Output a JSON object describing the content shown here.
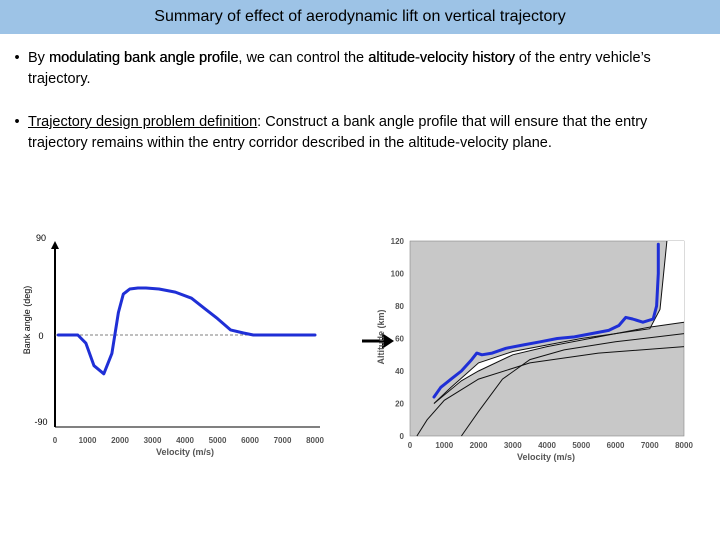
{
  "slide": {
    "title": "Summary of effect of aerodynamic lift on vertical trajectory",
    "bullet1": {
      "pre": "By ",
      "bold1": "modulating bank angle profile",
      "mid": ", we can control the ",
      "bold2": "altitude-velocity history",
      "post": " of the entry vehicle’s trajectory."
    },
    "bullet2": {
      "underlined": "Trajectory design problem definition",
      "post": ": Construct a bank angle profile that will ensure that the entry trajectory remains within the entry corridor described in the altitude-velocity plane."
    }
  },
  "chart_data": [
    {
      "type": "line",
      "xlabel": "Velocity (m/s)",
      "ylabel": "Bank angle (deg)",
      "x_ticks": [
        0,
        1000,
        2000,
        3000,
        4000,
        5000,
        6000,
        7000,
        8000
      ],
      "y_tick_labels": [
        "90",
        "0",
        "-90"
      ],
      "xlim": [
        0,
        8000
      ],
      "ylim": [
        -90,
        90
      ],
      "reference_line_y": 0,
      "series": [
        {
          "color": "#1f2fd6",
          "x": [
            100,
            700,
            950,
            1200,
            1500,
            1750,
            1950,
            2100,
            2300,
            2550,
            2800,
            3200,
            3700,
            4200,
            4600,
            5000,
            5400,
            5800,
            6100,
            6400,
            7000,
            7500,
            8000
          ],
          "y": [
            0,
            0,
            -8,
            -30,
            -38,
            -18,
            22,
            40,
            45,
            46,
            46,
            45,
            42,
            36,
            26,
            16,
            5,
            2,
            0,
            0,
            0,
            0,
            0
          ]
        }
      ]
    },
    {
      "type": "line",
      "xlabel": "Velocity (m/s)",
      "ylabel": "Altitude (km)",
      "x_ticks": [
        0,
        1000,
        2000,
        3000,
        4000,
        5000,
        6000,
        7000,
        8000
      ],
      "y_ticks": [
        0,
        20,
        40,
        60,
        80,
        100,
        120
      ],
      "xlim": [
        0,
        8000
      ],
      "ylim": [
        0,
        120
      ],
      "series": [
        {
          "color": "#1f2fd6",
          "x": [
            700,
            900,
            1200,
            1500,
            1800,
            1950,
            2100,
            2400,
            2800,
            3300,
            3800,
            4300,
            4800,
            5300,
            5800,
            6100,
            6300,
            6500,
            6800,
            7100,
            7200,
            7250,
            7250
          ],
          "y": [
            24,
            30,
            35,
            40,
            47,
            51,
            50,
            51,
            54,
            56,
            58,
            60,
            61,
            63,
            65,
            68,
            73,
            72,
            70,
            72,
            80,
            100,
            118
          ]
        }
      ]
    }
  ]
}
